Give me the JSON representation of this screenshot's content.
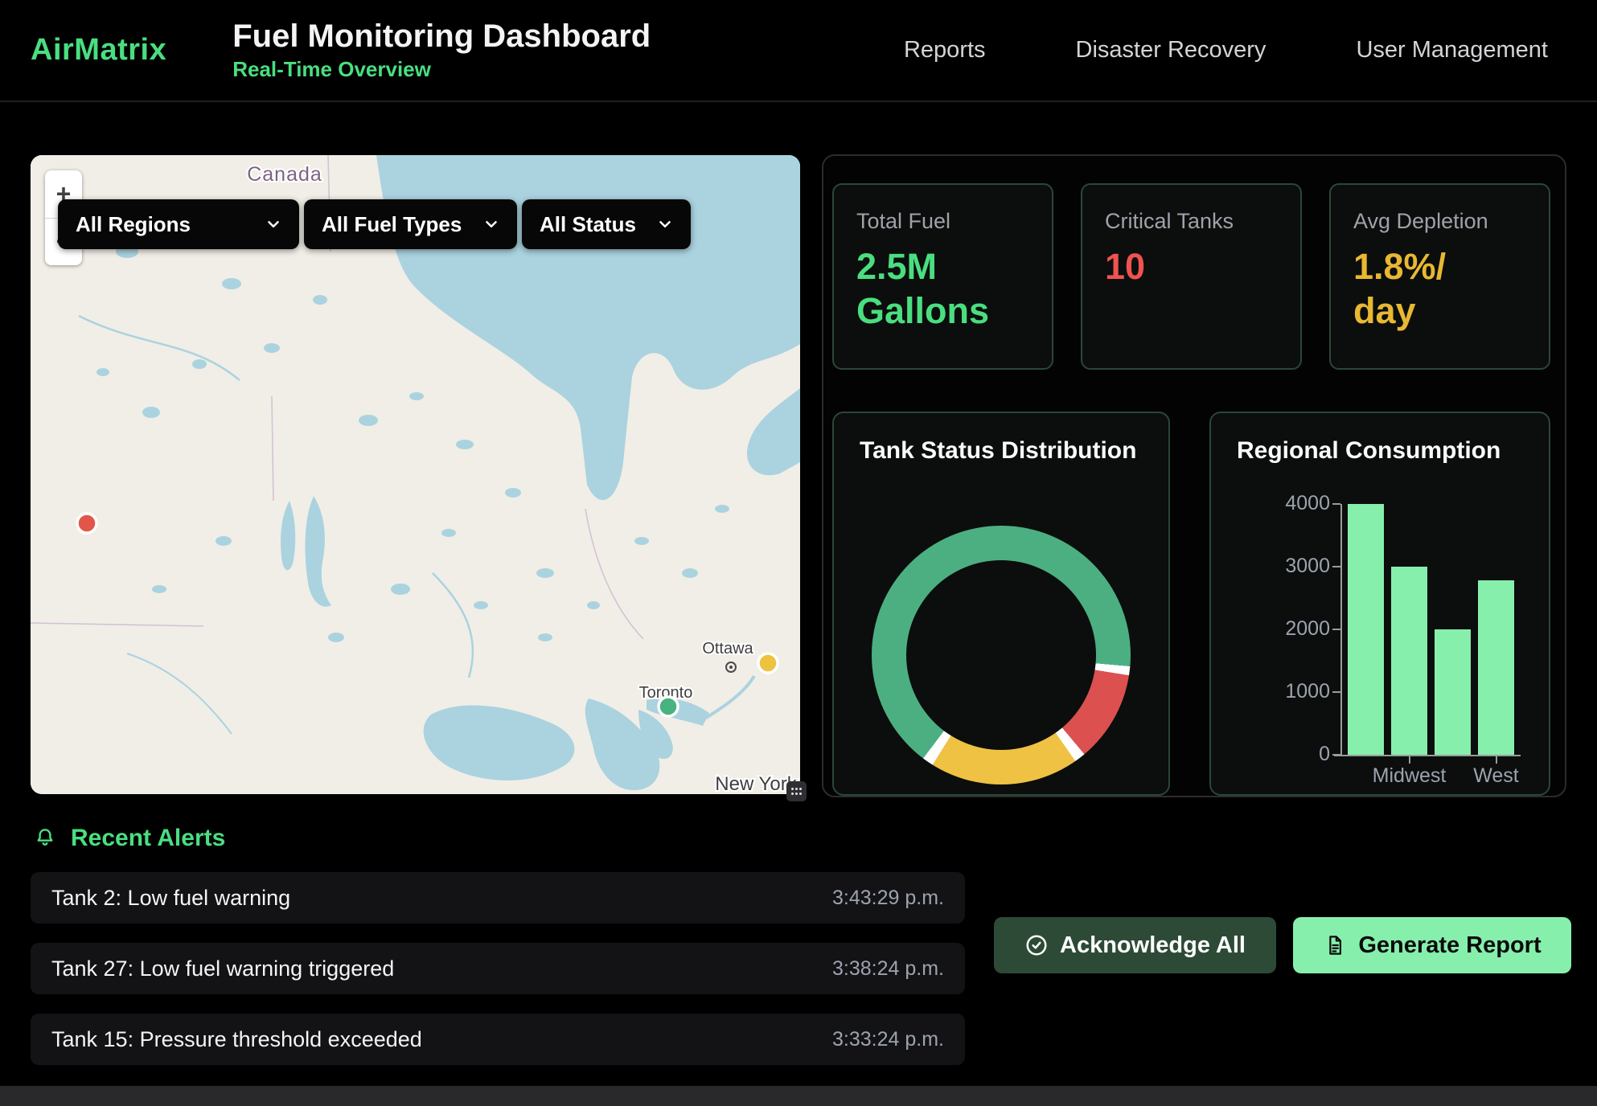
{
  "header": {
    "brand": "AirMatrix",
    "title": "Fuel Monitoring Dashboard",
    "subtitle": "Real-Time Overview",
    "nav": [
      {
        "label": "Reports"
      },
      {
        "label": "Disaster Recovery"
      },
      {
        "label": "User Management"
      }
    ]
  },
  "map": {
    "filters": [
      {
        "label": "All Regions"
      },
      {
        "label": "All Fuel Types"
      },
      {
        "label": "All Status"
      }
    ],
    "zoom_in_label": "+",
    "zoom_out_label": "−",
    "labels": {
      "country": "Canada",
      "ottawa": "Ottawa",
      "toronto": "Toronto",
      "new_york": "New York"
    },
    "markers": [
      {
        "status": "critical",
        "color": "#e25649"
      },
      {
        "status": "warning",
        "color": "#eec23f"
      },
      {
        "status": "normal",
        "color": "#46b380"
      }
    ]
  },
  "stats": [
    {
      "label": "Total Fuel",
      "value": [
        "2.5M",
        "Gallons"
      ],
      "color": "#4ade80"
    },
    {
      "label": "Critical Tanks",
      "value": [
        "10"
      ],
      "color": "#ef5350"
    },
    {
      "label": "Avg Depletion",
      "value": [
        "1.8%/",
        "day"
      ],
      "color": "#e8b832"
    }
  ],
  "chart_data": [
    {
      "type": "pie",
      "style": "donut",
      "title": "Tank Status Distribution",
      "legend": "none",
      "separator_color": "#ffffff",
      "segments": [
        {
          "label": "green",
          "color": "#4caf82",
          "start_deg": 0,
          "end_deg": 95
        },
        {
          "label": "red",
          "color": "#dc5050",
          "start_deg": 99,
          "end_deg": 140
        },
        {
          "label": "yellow",
          "color": "#efc244",
          "start_deg": 145,
          "end_deg": 212
        },
        {
          "label": "green",
          "color": "#4caf82",
          "start_deg": 217,
          "end_deg": 360
        }
      ],
      "approx_share_percent": {
        "green": 66,
        "yellow": 19,
        "red": 11,
        "separators": 4
      }
    },
    {
      "type": "bar",
      "title": "Regional Consumption",
      "categories": [
        "",
        "Midwest",
        "",
        "West"
      ],
      "values": [
        4000,
        3000,
        2000,
        2780
      ],
      "bar_color": "#86efac",
      "ylim": [
        0,
        4000
      ],
      "yticks": [
        0,
        1000,
        2000,
        3000,
        4000
      ],
      "grid": "off",
      "legend": "none"
    }
  ],
  "alerts": {
    "heading": "Recent Alerts",
    "items": [
      {
        "text": "Tank 2: Low fuel warning",
        "time": "3:43:29 p.m."
      },
      {
        "text": "Tank 27: Low fuel warning triggered",
        "time": "3:38:24 p.m."
      },
      {
        "text": "Tank 15: Pressure threshold exceeded",
        "time": "3:33:24 p.m."
      }
    ]
  },
  "actions": {
    "acknowledge_label": "Acknowledge All",
    "report_label": "Generate Report"
  },
  "colors": {
    "accent_green": "#4ade80",
    "button_green": "#86efac",
    "critical_red": "#ef5350",
    "warning_amber": "#e8b832",
    "map_water": "#aad3df",
    "map_land": "#f1eee7"
  }
}
